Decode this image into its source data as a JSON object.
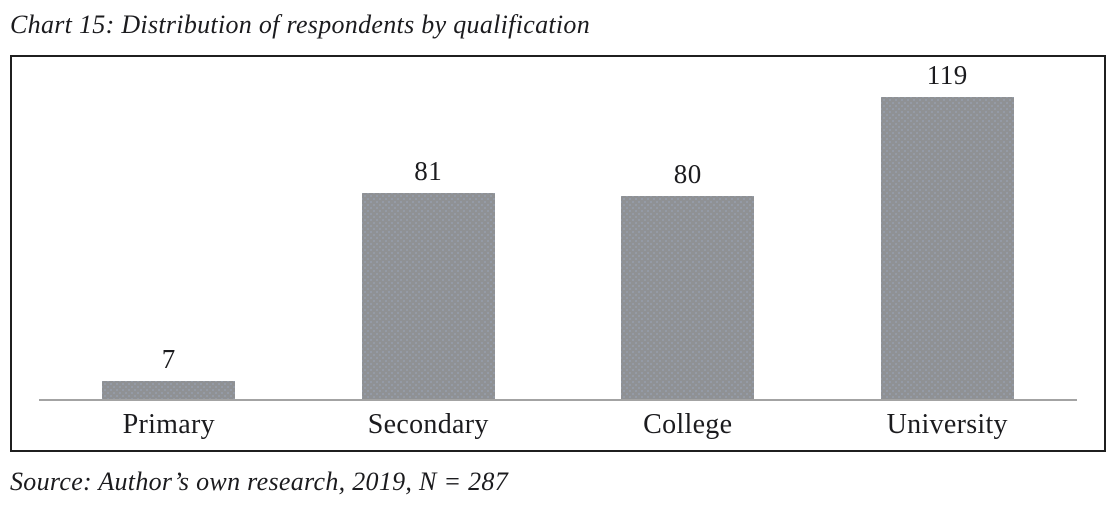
{
  "header": {
    "title": "Chart 15: Distribution of respondents by qualification"
  },
  "footer": {
    "source": "Source: Author’s own research, 2019, N = 287"
  },
  "chart_data": {
    "type": "bar",
    "title": "Chart 15: Distribution of respondents by qualification",
    "categories": [
      "Primary",
      "Secondary",
      "College",
      "University"
    ],
    "values": [
      7,
      81,
      80,
      119
    ],
    "data_labels": [
      "7",
      "81",
      "80",
      "119"
    ],
    "xlabel": "",
    "ylabel": "",
    "ylim": [
      0,
      135
    ],
    "grid": false,
    "legend": false,
    "data_labels_shown": true,
    "bar_color": "#8f9194",
    "axis_line_color": "#a3a3a3",
    "plot_border_color": "#1f1f1f",
    "text_color": "#1b1b1e",
    "background_color": "#ffffff"
  }
}
